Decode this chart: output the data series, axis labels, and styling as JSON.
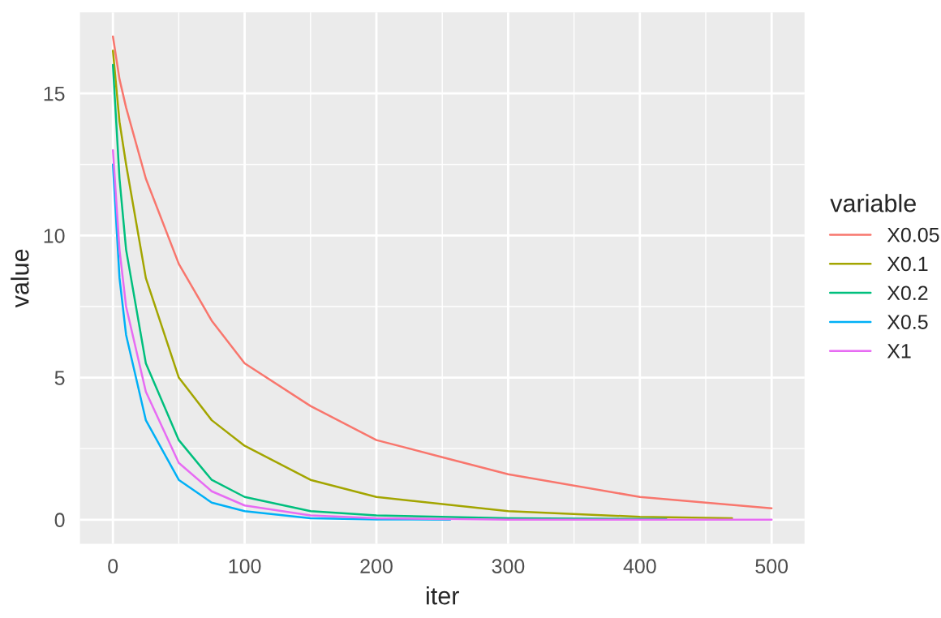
{
  "chart_data": {
    "type": "line",
    "xlabel": "iter",
    "ylabel": "value",
    "legend_title": "variable",
    "legend": "right",
    "grid": true,
    "xlim": [
      -25,
      525
    ],
    "ylim": [
      -0.85,
      17.85
    ],
    "xticks": [
      0,
      100,
      200,
      300,
      400,
      500
    ],
    "yticks": [
      0,
      5,
      10,
      15
    ],
    "series": [
      {
        "name": "X0.05",
        "color": "#F8766D",
        "x": [
          0,
          5,
          10,
          25,
          50,
          75,
          100,
          150,
          200,
          250,
          300,
          400,
          500
        ],
        "values": [
          17,
          15.5,
          14.5,
          12,
          9,
          7,
          5.5,
          4,
          2.8,
          2.2,
          1.6,
          0.8,
          0.4
        ]
      },
      {
        "name": "X0.1",
        "color": "#A3A500",
        "x": [
          0,
          5,
          10,
          25,
          50,
          75,
          100,
          150,
          200,
          300,
          400,
          470
        ],
        "values": [
          16.5,
          14,
          12.5,
          8.5,
          5,
          3.5,
          2.6,
          1.4,
          0.8,
          0.3,
          0.1,
          0.05
        ]
      },
      {
        "name": "X0.2",
        "color": "#00BF7D",
        "x": [
          0,
          5,
          10,
          25,
          50,
          75,
          100,
          150,
          200,
          300,
          420
        ],
        "values": [
          16,
          12,
          9.5,
          5.5,
          2.8,
          1.4,
          0.8,
          0.3,
          0.15,
          0.05,
          0.02
        ]
      },
      {
        "name": "X0.5",
        "color": "#00B0F6",
        "x": [
          0,
          5,
          10,
          25,
          50,
          75,
          100,
          150,
          200,
          256
        ],
        "values": [
          12.5,
          8.5,
          6.5,
          3.5,
          1.4,
          0.6,
          0.3,
          0.05,
          0.01,
          0
        ]
      },
      {
        "name": "X1",
        "color": "#E76BF3",
        "x": [
          0,
          5,
          10,
          25,
          50,
          75,
          100,
          150,
          200,
          300,
          500
        ],
        "values": [
          13,
          9.5,
          7.5,
          4.5,
          2,
          1,
          0.5,
          0.15,
          0.05,
          0,
          0
        ]
      }
    ]
  }
}
